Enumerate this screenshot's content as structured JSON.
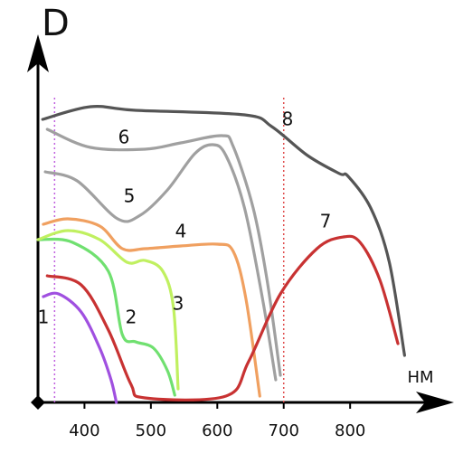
{
  "chart_data": {
    "type": "line",
    "y_label": "D",
    "x_label": "НМ",
    "xlim": [
      330,
      940
    ],
    "ylim": [
      0,
      100
    ],
    "xticks": [
      400,
      500,
      600,
      700,
      800
    ],
    "vlines": [
      {
        "x": 355,
        "color": "#c060e0"
      },
      {
        "x": 700,
        "color": "#e05050"
      }
    ],
    "series": [
      {
        "name": "1",
        "color": "#a050e0",
        "x": [
          338,
          361,
          395,
          423,
          440,
          448
        ],
        "values": [
          29.25,
          30,
          25,
          15,
          6.25,
          0
        ]
      },
      {
        "name": "2",
        "color": "#70e070",
        "x": [
          330,
          382,
          436,
          457,
          477,
          504,
          525,
          536
        ],
        "values": [
          45,
          44.25,
          36.25,
          18.75,
          16.75,
          15,
          8.75,
          2
        ]
      },
      {
        "name": "3",
        "color": "#c0f060",
        "x": [
          330,
          375,
          423,
          464,
          491,
          518,
          534,
          541
        ],
        "values": [
          45,
          47.5,
          45,
          38.75,
          39.25,
          36.25,
          26.25,
          3.75
        ]
      },
      {
        "name": "4",
        "color": "#f0a060",
        "x": [
          338,
          375,
          423,
          457,
          491,
          545,
          600,
          624,
          643,
          664
        ],
        "values": [
          49.25,
          50.75,
          48.75,
          42.5,
          42.5,
          43.25,
          43.75,
          41.75,
          28.75,
          1.75
        ]
      },
      {
        "name": "5",
        "color": "#a0a0a0",
        "x": [
          341,
          389,
          450,
          484,
          525,
          566,
          593,
          613,
          641,
          668,
          688
        ],
        "values": [
          63.75,
          61.25,
          50.75,
          51.75,
          58.75,
          68.75,
          71.25,
          68.25,
          53.75,
          28.75,
          6.25
        ]
      },
      {
        "name": "6",
        "color": "#a0a0a0",
        "x": [
          344,
          409,
          491,
          545,
          607,
          624,
          654,
          675,
          695
        ],
        "values": [
          75.5,
          70.5,
          70,
          71.75,
          73.75,
          70.75,
          53.75,
          33.75,
          7.5
        ]
      },
      {
        "name": "7",
        "color": "#c83232",
        "x": [
          344,
          395,
          436,
          470,
          491,
          613,
          647,
          695,
          750,
          790,
          815,
          845,
          872
        ],
        "values": [
          35,
          32.5,
          20,
          5,
          1.25,
          1.75,
          11.25,
          30,
          42.5,
          45.75,
          44.25,
          33.75,
          16.25
        ]
      },
      {
        "name": "8",
        "color": "#555555",
        "x": [
          337,
          409,
          477,
          641,
          682,
          736,
          784,
          797,
          831,
          859,
          882
        ],
        "values": [
          78.25,
          81.75,
          80.75,
          79.5,
          76.25,
          68.25,
          63.25,
          62.5,
          53.75,
          38.75,
          13
        ]
      }
    ]
  }
}
